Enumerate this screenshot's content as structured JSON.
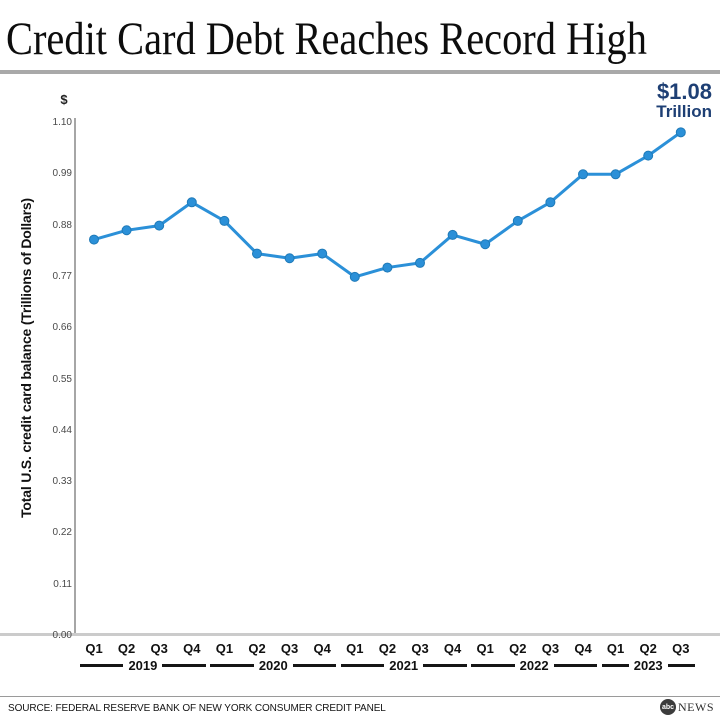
{
  "header": {
    "title": "Credit Card Debt Reaches Record High"
  },
  "annotation": {
    "value": "$1.08",
    "unit": "Trillion",
    "color": "#1e3f74"
  },
  "chart_data": {
    "type": "line",
    "title": "Credit Card Debt Reaches Record High",
    "ylabel": "Total U.S. credit card balance (Trillions of Dollars)",
    "y_axis_unit_symbol": "$",
    "ylim": [
      0,
      1.1
    ],
    "ytick_labels": [
      "0.00",
      "0.11",
      "0.22",
      "0.33",
      "0.44",
      "0.55",
      "0.66",
      "0.77",
      "0.88",
      "0.99",
      "1.10"
    ],
    "categories": [
      "Q1",
      "Q2",
      "Q3",
      "Q4",
      "Q1",
      "Q2",
      "Q3",
      "Q4",
      "Q1",
      "Q2",
      "Q3",
      "Q4",
      "Q1",
      "Q2",
      "Q3",
      "Q4",
      "Q1",
      "Q2",
      "Q3"
    ],
    "year_groups": [
      {
        "label": "2019",
        "start": 0,
        "count": 4
      },
      {
        "label": "2020",
        "start": 4,
        "count": 4
      },
      {
        "label": "2021",
        "start": 8,
        "count": 4
      },
      {
        "label": "2022",
        "start": 12,
        "count": 4
      },
      {
        "label": "2023",
        "start": 16,
        "count": 3
      }
    ],
    "series": [
      {
        "name": "Total U.S. credit card balance (Trillions of Dollars)",
        "values": [
          0.85,
          0.87,
          0.88,
          0.93,
          0.89,
          0.82,
          0.81,
          0.82,
          0.77,
          0.79,
          0.8,
          0.86,
          0.84,
          0.89,
          0.93,
          0.99,
          0.99,
          1.03,
          1.08
        ]
      }
    ],
    "annotation_label": "$1.08 Trillion",
    "line_color": "#2b90d8",
    "point_color": "#2b90d8",
    "grid": false,
    "legend": false
  },
  "footer": {
    "source": "SOURCE: FEDERAL RESERVE BANK OF NEW YORK CONSUMER CREDIT PANEL",
    "logo_circle_text": "abc",
    "logo_name": "NEWS"
  }
}
